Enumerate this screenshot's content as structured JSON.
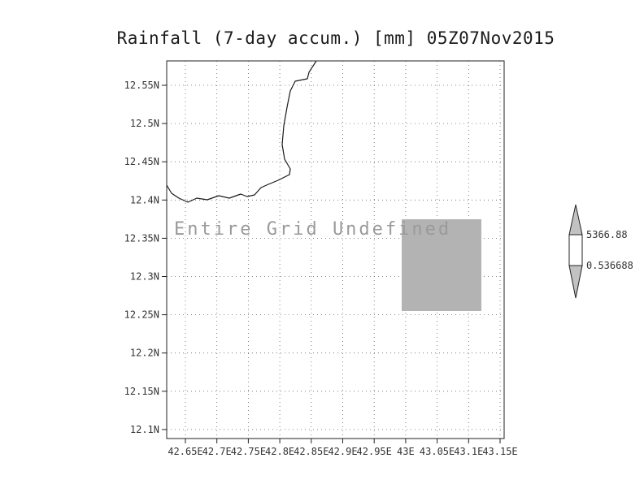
{
  "title": "Rainfall (7-day accum.) [mm] 05Z07Nov2015",
  "plot": {
    "undefined_label": "Entire Grid Undefined"
  },
  "axes": {
    "y_ticks": [
      "12.55N",
      "12.5N",
      "12.45N",
      "12.4N",
      "12.35N",
      "12.3N",
      "12.25N",
      "12.2N",
      "12.15N",
      "12.1N"
    ],
    "x_ticks": [
      "42.65E",
      "42.7E",
      "42.75E",
      "42.8E",
      "42.85E",
      "42.9E",
      "42.95E",
      "43E",
      "43.05E",
      "43.1E",
      "43.15E"
    ]
  },
  "colorbar": {
    "max_label": "5366.88",
    "min_label": "0.536688",
    "fill_color": "#c2c2c2",
    "mid_color": "#ffffff"
  },
  "colors": {
    "shaded_region": "#b3b3b3",
    "undefined_text": "#9a9a9a",
    "coastline": "#1a1a1a"
  },
  "chart_data": {
    "type": "heatmap",
    "title": "Rainfall (7-day accum.) [mm] 05Z07Nov2015",
    "xlabel": "",
    "ylabel": "",
    "x_ticks": [
      "42.65E",
      "42.7E",
      "42.75E",
      "42.8E",
      "42.85E",
      "42.9E",
      "42.95E",
      "43E",
      "43.05E",
      "43.1E",
      "43.15E"
    ],
    "y_ticks": [
      "12.55N",
      "12.5N",
      "12.45N",
      "12.4N",
      "12.35N",
      "12.3N",
      "12.25N",
      "12.2N",
      "12.15N",
      "12.1N"
    ],
    "grid": true,
    "legend_position": "right",
    "colorbar_levels": [
      0.536688,
      5366.88
    ],
    "values": "undefined",
    "annotations": [
      "Entire Grid Undefined"
    ],
    "shaded_region": {
      "lon_range": [
        43.0,
        43.125
      ],
      "lat_range": [
        12.25,
        12.375
      ],
      "color": "#b3b3b3"
    }
  }
}
